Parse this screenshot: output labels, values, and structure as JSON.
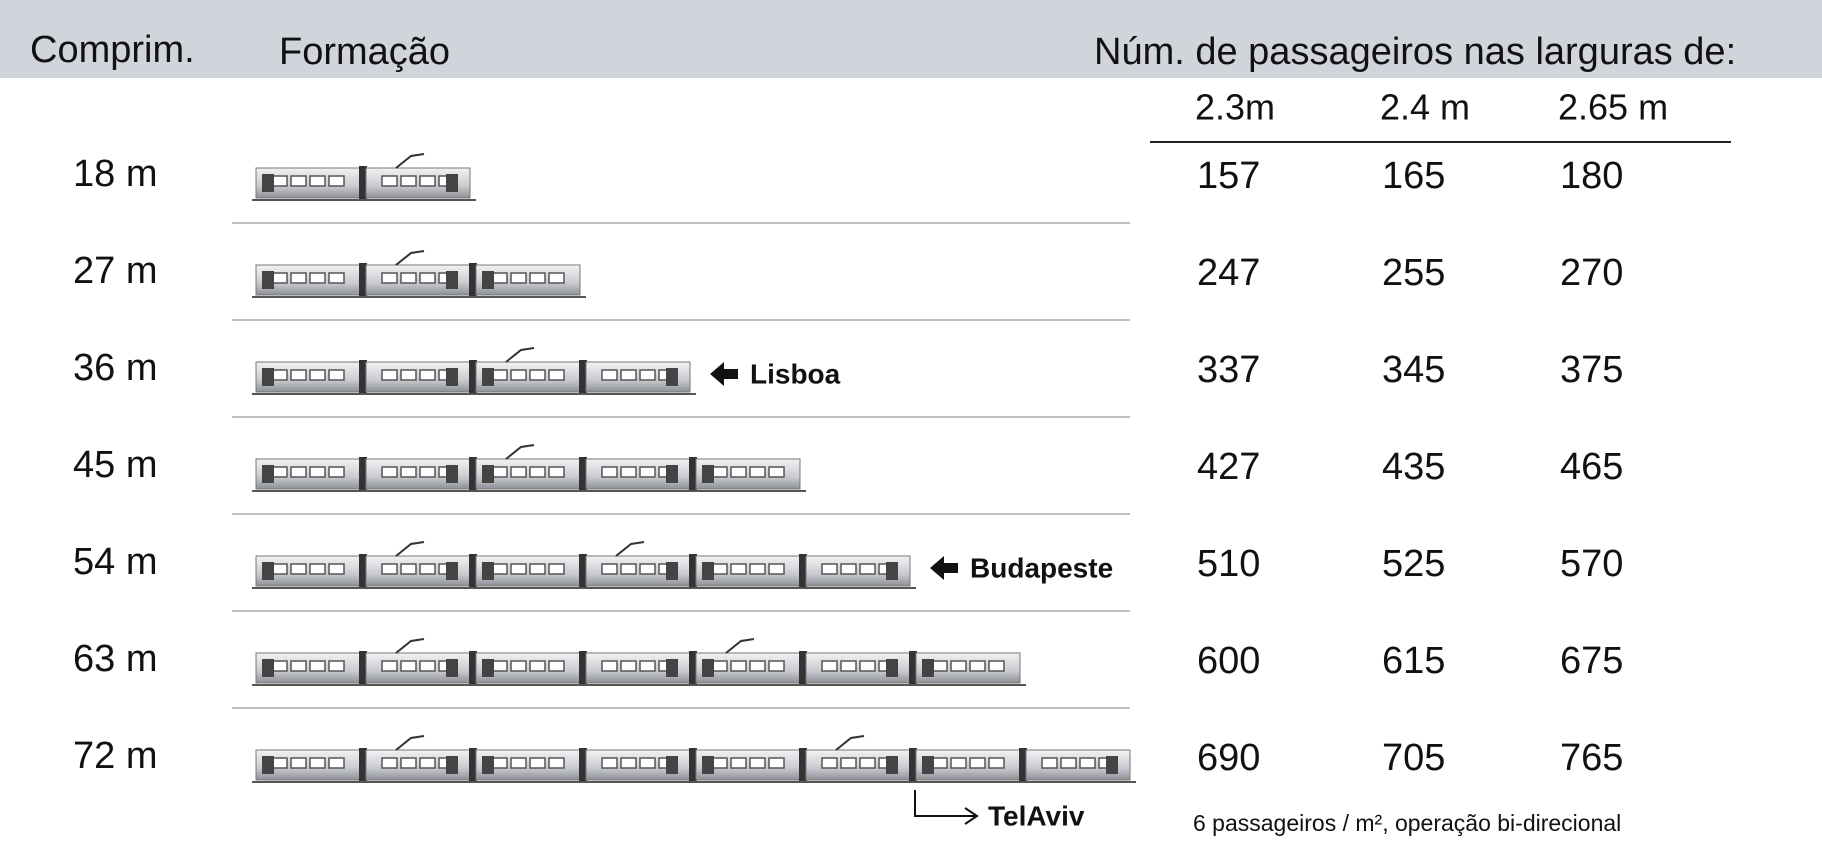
{
  "header": {
    "length_label": "Comprim.",
    "formation_label": "Formação",
    "passengers_label": "Núm. de passageiros nas larguras de:"
  },
  "widths": [
    "2.3m",
    "2.4 m",
    "2.65 m"
  ],
  "rows": [
    {
      "length": "18 m",
      "values": [
        "157",
        "165",
        "180"
      ]
    },
    {
      "length": "27 m",
      "values": [
        "247",
        "255",
        "270"
      ]
    },
    {
      "length": "36 m",
      "values": [
        "337",
        "345",
        "375"
      ],
      "note": "Lisboa"
    },
    {
      "length": "45 m",
      "values": [
        "427",
        "435",
        "465"
      ]
    },
    {
      "length": "54 m",
      "values": [
        "510",
        "525",
        "570"
      ],
      "note": "Budapeste"
    },
    {
      "length": "63 m",
      "values": [
        "600",
        "615",
        "675"
      ]
    },
    {
      "length": "72 m",
      "values": [
        "690",
        "705",
        "765"
      ]
    }
  ],
  "telaviv": "TelAviv",
  "footnote": "6 passageiros / m², operação bi-direcional"
}
